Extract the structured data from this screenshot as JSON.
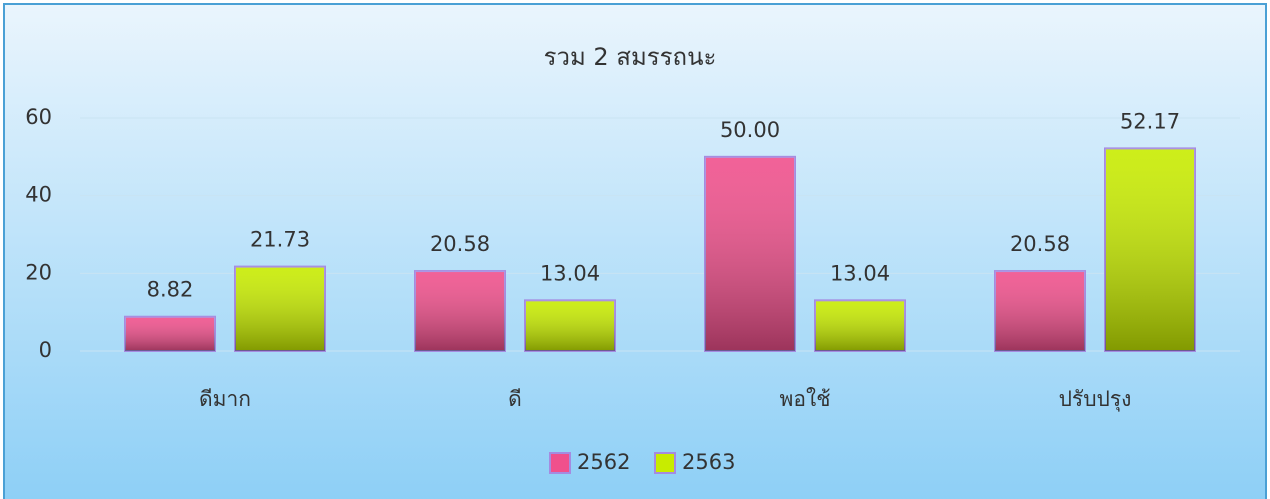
{
  "chart_data": {
    "type": "bar",
    "title": "รวม 2 สมรรถนะ",
    "categories": [
      "ดีมาก",
      "ดี",
      "พอใช้",
      "ปรับปรุง"
    ],
    "series": [
      {
        "name": "2562",
        "color": "#f0508c",
        "values": [
          8.82,
          20.58,
          50,
          20.58
        ],
        "value_labels": [
          "8.82",
          "20.58",
          "50.00",
          "20.58"
        ]
      },
      {
        "name": "2563",
        "color": "#c8ec00",
        "values": [
          21.73,
          13.04,
          13.04,
          52.17
        ],
        "value_labels": [
          "21.73",
          "13.04",
          "13.04",
          "52.17"
        ]
      }
    ],
    "ylim": [
      0,
      60
    ],
    "yticks": [
      0,
      20,
      40,
      60
    ],
    "grid": true,
    "legend": "bottom"
  }
}
